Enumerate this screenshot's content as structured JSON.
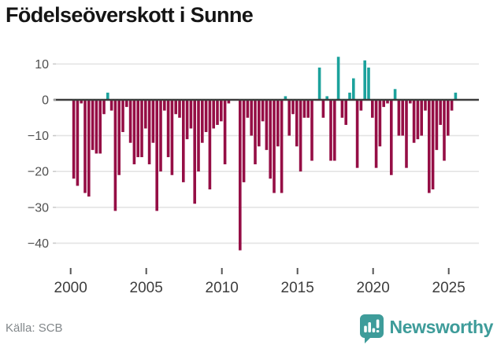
{
  "title": "Födelseöverskott i Sunne",
  "source": "Källa: SCB",
  "logo": {
    "text": "Newsworthy"
  },
  "colors": {
    "negative_bar": "#950E45",
    "positive_bar": "#1CA29C",
    "brand_teal": "#3E9C9A",
    "zero_axis": "#3C3C3C",
    "gridline": "#E4E4E4",
    "title_text": "#151515",
    "x_tick_text": "#3D3D3D",
    "y_tick_text": "#4F4F4F",
    "source_text": "#82878A"
  },
  "chart_data": {
    "type": "bar",
    "title": "Födelseöverskott i Sunne",
    "xlabel": "",
    "ylabel": "",
    "frequency": "quarterly",
    "x_start": "2000Q1",
    "x_end": "2025Q2",
    "grid": true,
    "legend": "none",
    "ylim": [
      -45,
      13
    ],
    "yticks": [
      10,
      0,
      -10,
      -20,
      -30,
      -40
    ],
    "yticklabels": [
      "10",
      "0",
      "−10",
      "−20",
      "−30",
      "−40"
    ],
    "xticks": [
      2000,
      2005,
      2010,
      2015,
      2020,
      2025
    ],
    "xticklabels": [
      "2000",
      "2005",
      "2010",
      "2015",
      "2020",
      "2025"
    ],
    "periods": [
      "2000Q1",
      "2000Q2",
      "2000Q3",
      "2000Q4",
      "2001Q1",
      "2001Q2",
      "2001Q3",
      "2001Q4",
      "2002Q1",
      "2002Q2",
      "2002Q3",
      "2002Q4",
      "2003Q1",
      "2003Q2",
      "2003Q3",
      "2003Q4",
      "2004Q1",
      "2004Q2",
      "2004Q3",
      "2004Q4",
      "2005Q1",
      "2005Q2",
      "2005Q3",
      "2005Q4",
      "2006Q1",
      "2006Q2",
      "2006Q3",
      "2006Q4",
      "2007Q1",
      "2007Q2",
      "2007Q3",
      "2007Q4",
      "2008Q1",
      "2008Q2",
      "2008Q3",
      "2008Q4",
      "2009Q1",
      "2009Q2",
      "2009Q3",
      "2009Q4",
      "2010Q1",
      "2010Q2",
      "2010Q3",
      "2010Q4",
      "2011Q1",
      "2011Q2",
      "2011Q3",
      "2011Q4",
      "2012Q1",
      "2012Q2",
      "2012Q3",
      "2012Q4",
      "2013Q1",
      "2013Q2",
      "2013Q3",
      "2013Q4",
      "2014Q1",
      "2014Q2",
      "2014Q3",
      "2014Q4",
      "2015Q1",
      "2015Q2",
      "2015Q3",
      "2015Q4",
      "2016Q1",
      "2016Q2",
      "2016Q3",
      "2016Q4",
      "2017Q1",
      "2017Q2",
      "2017Q3",
      "2017Q4",
      "2018Q1",
      "2018Q2",
      "2018Q3",
      "2018Q4",
      "2019Q1",
      "2019Q2",
      "2019Q3",
      "2019Q4",
      "2020Q1",
      "2020Q2",
      "2020Q3",
      "2020Q4",
      "2021Q1",
      "2021Q2",
      "2021Q3",
      "2021Q4",
      "2022Q1",
      "2022Q2",
      "2022Q3",
      "2022Q4",
      "2023Q1",
      "2023Q2",
      "2023Q3",
      "2023Q4",
      "2024Q1",
      "2024Q2",
      "2024Q3",
      "2024Q4",
      "2025Q1",
      "2025Q2"
    ],
    "values": [
      -22,
      -24,
      -1,
      -26,
      -27,
      -14,
      -15,
      -15,
      -4,
      2,
      -3,
      -31,
      -21,
      -9,
      -2,
      -12,
      -18,
      -16,
      -16,
      -8,
      -18,
      -12,
      -31,
      -20,
      -3,
      -16,
      -21,
      -4,
      -5,
      -23,
      -11,
      -8,
      -29,
      -20,
      -12,
      -9,
      -25,
      -8,
      -7,
      -6,
      -18,
      -1,
      0,
      0,
      -42,
      -23,
      -5,
      -10,
      -18,
      -13,
      -6,
      -14,
      -22,
      -26,
      -13,
      -26,
      1,
      -10,
      -4,
      -13,
      -20,
      -5,
      -5,
      -17,
      0,
      9,
      -5,
      1,
      -17,
      -17,
      12,
      -5,
      -7,
      2,
      6,
      -19,
      -3,
      11,
      9,
      -5,
      -19,
      -13,
      -2,
      -1,
      -21,
      3,
      -10,
      -10,
      -19,
      -1,
      -12,
      -11,
      -10,
      -3,
      -26,
      -25,
      -14,
      -7,
      -17,
      -10,
      -3,
      2
    ]
  }
}
